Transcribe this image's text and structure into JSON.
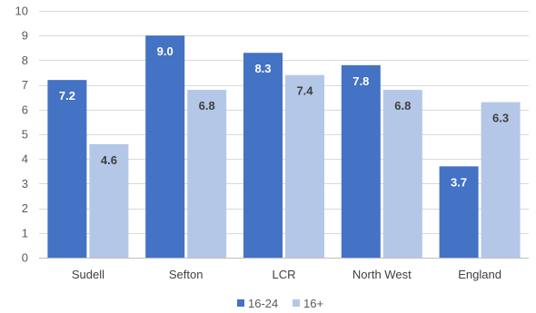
{
  "chart_data": {
    "type": "bar",
    "categories": [
      "Sudell",
      "Sefton",
      "LCR",
      "North West",
      "England"
    ],
    "series": [
      {
        "name": "16-24",
        "values": [
          7.2,
          9.0,
          8.3,
          7.8,
          3.7
        ],
        "color": "#4472C4",
        "label_color": "#FFFFFF"
      },
      {
        "name": "16+",
        "values": [
          4.6,
          6.8,
          7.4,
          6.8,
          6.3
        ],
        "color": "#B4C7E7",
        "label_color": "#404040"
      }
    ],
    "data_labels": [
      [
        "7.2",
        "9.0",
        "8.3",
        "7.8",
        "3.7"
      ],
      [
        "4.6",
        "6.8",
        "7.4",
        "6.8",
        "6.3"
      ]
    ],
    "yticks": [
      0,
      1,
      2,
      3,
      4,
      5,
      6,
      7,
      8,
      9,
      10
    ],
    "ylim": [
      0,
      10
    ],
    "grid": true,
    "legend_position": "bottom",
    "title": "",
    "xlabel": "",
    "ylabel": ""
  }
}
